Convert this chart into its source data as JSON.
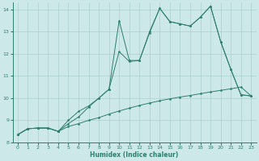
{
  "line1_x": [
    0,
    1,
    2,
    3,
    4,
    5,
    6,
    7,
    8,
    9,
    10,
    11,
    12,
    13,
    14,
    15,
    16,
    17,
    18,
    19,
    20,
    21,
    22,
    23
  ],
  "line1_y": [
    8.35,
    8.62,
    8.65,
    8.65,
    8.5,
    8.72,
    8.85,
    9.0,
    9.12,
    9.28,
    9.42,
    9.55,
    9.67,
    9.78,
    9.88,
    9.97,
    10.05,
    10.12,
    10.2,
    10.28,
    10.35,
    10.42,
    10.5,
    10.1
  ],
  "line2_x": [
    0,
    1,
    2,
    3,
    4,
    5,
    6,
    7,
    8,
    9,
    10,
    11,
    12,
    13,
    14,
    15,
    16,
    17,
    18,
    19,
    20,
    21,
    22,
    23
  ],
  "line2_y": [
    8.35,
    8.62,
    8.65,
    8.65,
    8.5,
    8.85,
    9.15,
    9.6,
    10.0,
    10.4,
    12.1,
    11.65,
    11.7,
    12.95,
    14.05,
    13.45,
    13.35,
    13.25,
    13.65,
    14.15,
    12.55,
    11.3,
    10.15,
    10.1
  ],
  "line3_x": [
    0,
    1,
    2,
    3,
    4,
    5,
    6,
    7,
    8,
    9,
    10,
    11,
    12,
    13,
    14,
    15,
    16,
    17,
    18,
    19,
    20,
    21,
    22,
    23
  ],
  "line3_y": [
    8.35,
    8.62,
    8.65,
    8.65,
    8.5,
    9.0,
    9.4,
    9.65,
    10.0,
    10.4,
    13.5,
    11.7,
    11.7,
    13.0,
    14.05,
    13.45,
    13.35,
    13.25,
    13.65,
    14.15,
    12.55,
    11.3,
    10.15,
    10.1
  ],
  "xlabel": "Humidex (Indice chaleur)",
  "xlim": [
    -0.5,
    23.5
  ],
  "ylim": [
    8.0,
    14.3
  ],
  "yticks": [
    8,
    9,
    10,
    11,
    12,
    13,
    14
  ],
  "xticks": [
    0,
    1,
    2,
    3,
    4,
    5,
    6,
    7,
    8,
    9,
    10,
    11,
    12,
    13,
    14,
    15,
    16,
    17,
    18,
    19,
    20,
    21,
    22,
    23
  ],
  "bg_color": "#cde8e8",
  "line_color": "#2e7f6e",
  "grid_color": "#aacfcf"
}
